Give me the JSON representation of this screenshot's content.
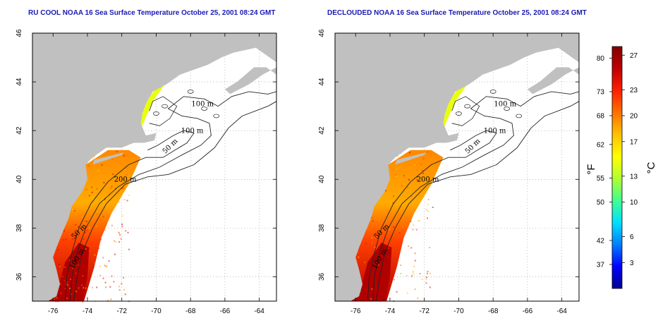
{
  "chart_data": [
    {
      "type": "heatmap",
      "title": "RU COOL NOAA 16 Sea Surface Temperature October 25, 2001 08:24 GMT",
      "xlim": [
        -77.2,
        -63.0
      ],
      "ylim": [
        35.0,
        46.0
      ],
      "xticks": [
        -76,
        -74,
        -72,
        -70,
        -68,
        -66,
        -64
      ],
      "yticks": [
        36,
        38,
        40,
        42,
        44,
        46
      ],
      "grid": true,
      "contour_labels": [
        "100 m",
        "100 m",
        "50 m",
        "200 m",
        "50 m",
        "100 m"
      ]
    },
    {
      "type": "heatmap",
      "title": "DECLOUDED NOAA 16 Sea Surface Temperature October 25, 2001 08:24 GMT",
      "xlim": [
        -77.2,
        -63.0
      ],
      "ylim": [
        35.0,
        46.0
      ],
      "xticks": [
        -76,
        -74,
        -72,
        -70,
        -68,
        -66,
        -64
      ],
      "yticks": [
        36,
        38,
        40,
        42,
        44,
        46
      ],
      "grid": true,
      "contour_labels": [
        "100 m",
        "100 m",
        "50 m",
        "200 m",
        "50 m",
        "100 m"
      ]
    }
  ],
  "colorbar": {
    "fahrenheit_ticks": [
      80,
      73,
      68,
      62,
      55,
      50,
      42,
      37
    ],
    "celsius_ticks": [
      27,
      23,
      20,
      17,
      13,
      10,
      6,
      3
    ],
    "fahrenheit_unit": "°F",
    "celsius_unit": "°C",
    "range_c": [
      0,
      28
    ],
    "colors": [
      "#000090",
      "#0000ff",
      "#0080ff",
      "#00e0ff",
      "#40ff90",
      "#b0ff30",
      "#ffff00",
      "#ffc000",
      "#ff7000",
      "#ff2000",
      "#c00000",
      "#800000"
    ]
  },
  "colors": {
    "land": "#c0c0c0",
    "missing": "#ffffff",
    "title": "#1a1ab4"
  }
}
